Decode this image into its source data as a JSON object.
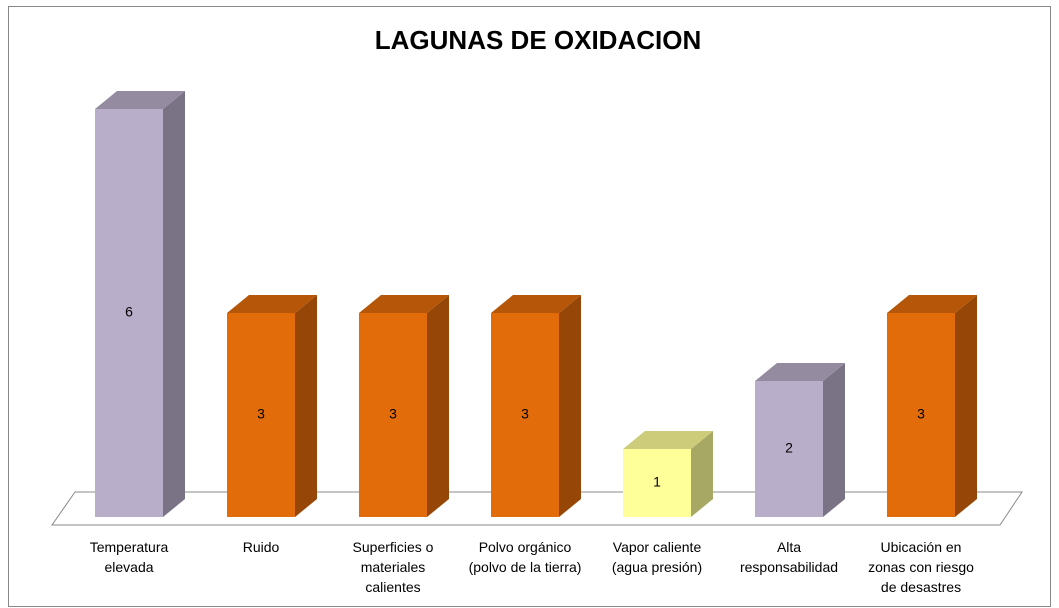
{
  "chart_data": {
    "type": "bar3d",
    "title": "LAGUNAS DE OXIDACION",
    "categories": [
      "Temperatura elevada",
      "Ruido",
      "Superficies o materiales calientes",
      "Polvo orgánico (polvo de la tierra)",
      "Vapor caliente (agua presión)",
      "Alta responsabilidad",
      "Ubicación en zonas con riesgo de desastres"
    ],
    "values": [
      6,
      3,
      3,
      3,
      1,
      2,
      3
    ],
    "colors": [
      "#b9aec9",
      "#e36c0a",
      "#e36c0a",
      "#e36c0a",
      "#ffff99",
      "#b9aec9",
      "#e36c0a"
    ]
  }
}
